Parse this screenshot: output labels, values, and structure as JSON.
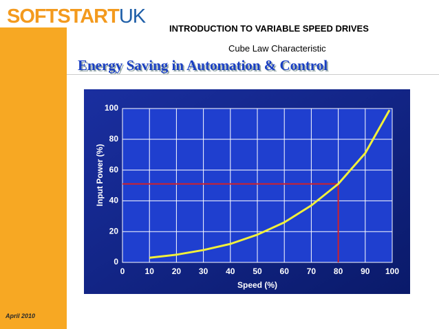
{
  "header": {
    "logo_main": "SOFTSTART",
    "logo_suffix": "UK",
    "title": "INTRODUCTION TO VARIABLE SPEED DRIVES",
    "subtitle": "Cube Law Characteristic",
    "heading": "Energy Saving in Automation & Control"
  },
  "footer": {
    "date": "April 2010"
  },
  "chart_data": {
    "type": "line",
    "x_label": "Speed (%)",
    "y_label": "Input Power (%)",
    "x": [
      10,
      20,
      30,
      40,
      50,
      60,
      70,
      80,
      90,
      99
    ],
    "series": [
      {
        "color": "#f2f03a",
        "values": [
          3,
          5,
          8,
          12,
          18,
          26,
          37,
          51,
          71,
          99
        ]
      }
    ],
    "reference": {
      "x": 80,
      "y": 51,
      "color": "#d0202a"
    },
    "xlim": [
      0,
      100
    ],
    "xticks": [
      0,
      10,
      20,
      30,
      40,
      50,
      60,
      70,
      80,
      90,
      100
    ],
    "ylim": [
      0,
      100
    ],
    "yticks": [
      0,
      20,
      40,
      60,
      80,
      100
    ],
    "grid": true
  }
}
